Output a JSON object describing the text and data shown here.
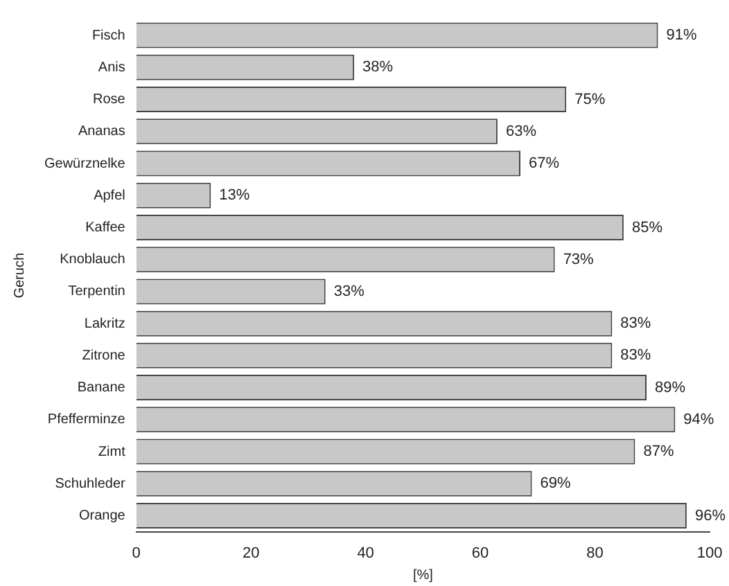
{
  "chart_data": {
    "type": "bar",
    "orientation": "horizontal",
    "xlabel": "[%]",
    "ylabel": "Geruch",
    "categories": [
      "Fisch",
      "Anis",
      "Rose",
      "Ananas",
      "Gewürznelke",
      "Apfel",
      "Kaffee",
      "Knoblauch",
      "Terpentin",
      "Lakritz",
      "Zitrone",
      "Banane",
      "Pfefferminze",
      "Zimt",
      "Schuhleder",
      "Orange"
    ],
    "values": [
      91,
      38,
      75,
      63,
      67,
      13,
      85,
      73,
      33,
      83,
      83,
      89,
      94,
      87,
      69,
      96
    ],
    "value_labels": [
      "91%",
      "38%",
      "75%",
      "63%",
      "67%",
      "13%",
      "85%",
      "73%",
      "33%",
      "83%",
      "83%",
      "89%",
      "94%",
      "87%",
      "69%",
      "96%"
    ],
    "color": "#c8c8c8",
    "xlim": [
      0,
      100
    ],
    "xticks": [
      0,
      20,
      40,
      60,
      80,
      100
    ],
    "grid": false,
    "legend": false
  }
}
